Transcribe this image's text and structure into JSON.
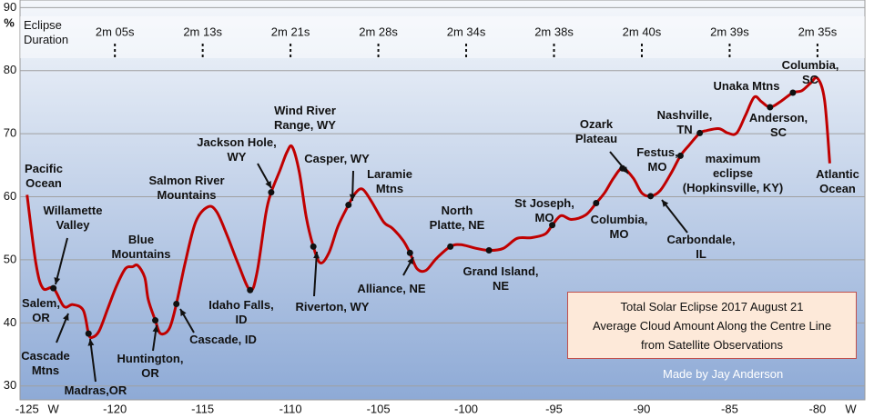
{
  "chart_data": {
    "type": "line",
    "y_label": "%",
    "xlim": [
      -125.4,
      -77.3
    ],
    "ylim": [
      27.8,
      91.2
    ],
    "xticks": [
      -125,
      {
        "value": -123.5,
        "label": "W"
      },
      -120,
      -115,
      -110,
      -105,
      -100,
      -95,
      -90,
      -85,
      -80,
      {
        "value": -78.1,
        "label": "W"
      }
    ],
    "yticks": [
      30,
      40,
      50,
      60,
      70,
      80,
      90
    ],
    "grid": true,
    "series": [
      {
        "color": "#c00000",
        "x": [
          -125,
          -124.5,
          -124.1,
          -123.5,
          -122.9,
          -122.4,
          -121.8,
          -121.5,
          -121.3,
          -120.9,
          -120.4,
          -119.9,
          -119.4,
          -119.0,
          -118.7,
          -118.3,
          -118.1,
          -117.7,
          -117.4,
          -116.9,
          -116.5,
          -116.0,
          -115.4,
          -114.7,
          -114.2,
          -113.6,
          -113.0,
          -112.3,
          -111.9,
          -111.4,
          -111.1,
          -110.6,
          -110.2,
          -109.9,
          -109.5,
          -109.1,
          -108.7,
          -108.3,
          -107.8,
          -107.3,
          -106.7,
          -106.3,
          -105.9,
          -105.4,
          -104.7,
          -104.2,
          -103.6,
          -103.2,
          -102.8,
          -102.3,
          -101.7,
          -100.9,
          -100.3,
          -99.4,
          -98.7,
          -97.9,
          -97.1,
          -96.3,
          -95.5,
          -95.1,
          -94.6,
          -94.0,
          -93.2,
          -92.6,
          -92.1,
          -91.6,
          -91.1,
          -90.5,
          -90.0,
          -89.5,
          -88.95,
          -88.3,
          -87.8,
          -87.3,
          -86.7,
          -86.3,
          -85.6,
          -85.1,
          -84.6,
          -84.1,
          -83.6,
          -83.2,
          -82.7,
          -82.1,
          -81.4,
          -80.9,
          -80.4,
          -80.0,
          -79.6,
          -79.3
        ],
        "values": [
          60.3,
          49.5,
          45.5,
          45.5,
          42.6,
          42.9,
          42.0,
          38.3,
          37.7,
          38.7,
          42.3,
          45.9,
          48.6,
          48.9,
          49.1,
          47.2,
          43.7,
          40.4,
          38.3,
          39.1,
          43.0,
          49.5,
          56.0,
          58.4,
          57.6,
          53.8,
          49.5,
          45.2,
          48.1,
          57.4,
          60.7,
          64.2,
          67.1,
          67.9,
          63.9,
          56.7,
          52.1,
          49.5,
          51.2,
          55.3,
          58.7,
          60.6,
          61.2,
          59.3,
          56.0,
          55.0,
          53.1,
          51.1,
          48.6,
          48.3,
          50.2,
          52.1,
          52.4,
          51.8,
          51.5,
          51.8,
          53.4,
          53.5,
          54.1,
          55.5,
          57.0,
          56.4,
          57.1,
          59.0,
          60.7,
          63.0,
          64.5,
          63.0,
          60.6,
          60.1,
          61.0,
          63.9,
          66.5,
          68.2,
          70.1,
          70.5,
          70.8,
          70.1,
          70.1,
          72.9,
          75.8,
          75.1,
          74.2,
          75.1,
          76.5,
          76.8,
          78.0,
          78.8,
          75.4,
          65.3
        ]
      }
    ],
    "duration": {
      "title": "Eclipse\nDuration",
      "x": [
        -120,
        -115,
        -110,
        -105,
        -100,
        -95,
        -90,
        -85,
        -80
      ],
      "labels": [
        "2m 05s",
        "2m 13s",
        "2m 21s",
        "2m 28s",
        "2m 34s",
        "2m 38s",
        "2m 40s",
        "2m 39s",
        "2m 35s"
      ]
    },
    "annotations": [
      {
        "text": "Pacific\nOcean"
      },
      {
        "text": "Willamette\nValley"
      },
      {
        "text": "Salem,\nOR",
        "x": -123.5,
        "y": 45.5
      },
      {
        "text": "Cascade\nMtns"
      },
      {
        "text": "Madras,OR",
        "x": -121.5,
        "y": 38.3
      },
      {
        "text": "Blue\nMountains"
      },
      {
        "text": "Huntington,\nOR",
        "x": -117.7,
        "y": 40.4
      },
      {
        "text": "Cascade, ID",
        "x": -116.5,
        "y": 43.0
      },
      {
        "text": "Salmon River\nMountains"
      },
      {
        "text": "Idaho Falls,\nID",
        "x": -112.3,
        "y": 45.2
      },
      {
        "text": "Jackson Hole,\nWY",
        "x": -111.1,
        "y": 60.7
      },
      {
        "text": "Wind River\nRange, WY"
      },
      {
        "text": "Riverton, WY",
        "x": -108.7,
        "y": 52.1
      },
      {
        "text": "Casper, WY",
        "x": -106.7,
        "y": 58.7
      },
      {
        "text": "Laramie\nMtns"
      },
      {
        "text": "Alliance, NE",
        "x": -103.2,
        "y": 51.1
      },
      {
        "text": "North\nPlatte, NE",
        "x": -100.9,
        "y": 52.1
      },
      {
        "text": "Grand Island,\nNE",
        "x": -98.7,
        "y": 51.5
      },
      {
        "text": "St Joseph,\nMO",
        "x": -95.1,
        "y": 55.5
      },
      {
        "text": "Columbia,\nMO",
        "x": -92.6,
        "y": 59.0
      },
      {
        "text": "Ozark\nPlateau"
      },
      {
        "text": "Festus,\nMO",
        "x": -91.1,
        "y": 64.5
      },
      {
        "text": "maximum\neclipse\n(Hopkinsville, KY)",
        "x": -87.8,
        "y": 66.5
      },
      {
        "text": "Carbondale,\nIL",
        "x": -89.5,
        "y": 60.1
      },
      {
        "text": "Nashville,\nTN",
        "x": -86.7,
        "y": 70.1
      },
      {
        "text": "Unaka Mtns"
      },
      {
        "text": "Anderson,\nSC",
        "x": -82.7,
        "y": 74.2
      },
      {
        "text": "Columbia,\nSC",
        "x": -81.4,
        "y": 76.5
      },
      {
        "text": "Atlantic\nOcean"
      }
    ],
    "info_box": [
      "Total Solar Eclipse 2017 August 21",
      "Average Cloud Amount Along the Centre Line",
      "from Satellite Observations"
    ],
    "credit": "Made by Jay Anderson"
  }
}
